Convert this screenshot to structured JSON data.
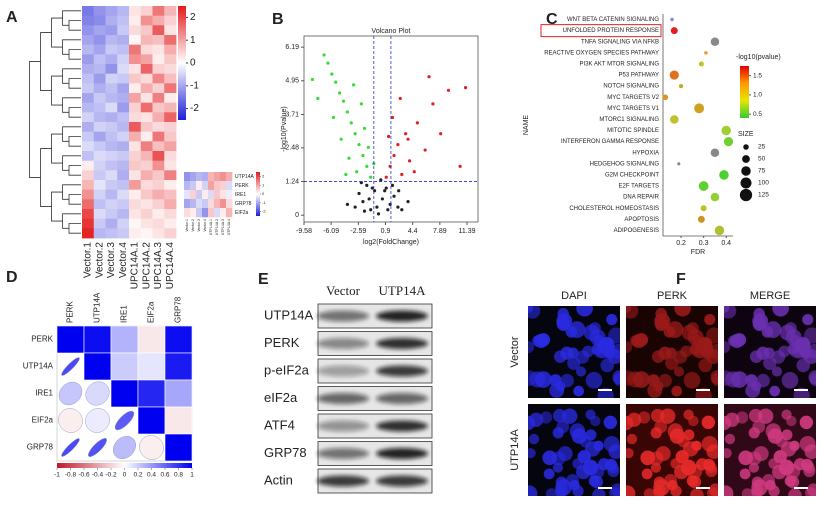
{
  "panel_labels": [
    "A",
    "B",
    "C",
    "D",
    "E",
    "F"
  ],
  "chart_data": [
    {
      "type": "heatmap",
      "columns": [
        "Vector.1",
        "Vector.2",
        "Vector.3",
        "Vector.4",
        "UPC14A.1",
        "UPC14A.2",
        "UPC14A.3",
        "UPC14A.4"
      ],
      "values": [
        [
          -1.5,
          -1.2,
          -1.0,
          -0.8,
          0.3,
          0.5,
          1.5,
          0.8
        ],
        [
          -1.4,
          -1.3,
          -0.9,
          -0.7,
          0.2,
          1.2,
          0.9,
          0.5
        ],
        [
          -1.2,
          -1.0,
          -1.1,
          -0.6,
          0.4,
          0.6,
          1.8,
          0.3
        ],
        [
          -1.0,
          -1.2,
          -0.8,
          -0.9,
          0.1,
          0.8,
          0.7,
          1.6
        ],
        [
          -0.8,
          -1.0,
          -0.6,
          -0.7,
          1.5,
          0.4,
          0.3,
          0.9
        ],
        [
          -1.1,
          -0.7,
          -0.9,
          -0.5,
          1.2,
          1.0,
          0.2,
          0.6
        ],
        [
          -0.9,
          -0.8,
          -1.2,
          -0.4,
          0.3,
          1.7,
          0.5,
          0.4
        ],
        [
          -0.7,
          -1.1,
          -0.5,
          -0.6,
          0.6,
          0.4,
          1.3,
          0.7
        ],
        [
          -0.6,
          -0.9,
          -0.7,
          -1.0,
          0.2,
          0.9,
          0.5,
          1.5
        ],
        [
          -1.0,
          -0.6,
          -0.8,
          -0.9,
          1.0,
          0.3,
          1.4,
          0.2
        ],
        [
          -0.8,
          -0.7,
          -0.4,
          -1.1,
          0.5,
          1.6,
          0.6,
          0.8
        ],
        [
          -0.5,
          -0.8,
          -0.9,
          -0.7,
          0.4,
          0.3,
          0.9,
          1.7
        ],
        [
          -0.9,
          -0.5,
          -0.6,
          -0.8,
          1.8,
          0.6,
          0.4,
          0.5
        ],
        [
          -0.6,
          -1.0,
          -0.7,
          -0.5,
          0.9,
          0.2,
          1.5,
          0.6
        ],
        [
          -0.4,
          -0.6,
          -0.8,
          -0.9,
          0.3,
          1.4,
          0.7,
          1.0
        ],
        [
          -0.7,
          -0.4,
          -0.5,
          -0.6,
          0.5,
          0.8,
          1.9,
          0.4
        ],
        [
          0.2,
          -0.5,
          -0.7,
          -0.8,
          0.6,
          0.5,
          1.2,
          0.3
        ],
        [
          0.5,
          -0.6,
          -0.4,
          -0.9,
          0.3,
          0.9,
          0.6,
          1.4
        ],
        [
          0.8,
          -0.3,
          -0.6,
          -0.7,
          1.1,
          0.4,
          0.5,
          0.2
        ],
        [
          1.2,
          -0.5,
          -0.8,
          -0.4,
          0.2,
          0.6,
          0.9,
          0.7
        ],
        [
          1.6,
          -0.7,
          -0.5,
          -0.6,
          0.4,
          0.3,
          0.5,
          0.9
        ],
        [
          2.0,
          -0.4,
          -0.6,
          -0.8,
          0.3,
          0.5,
          0.2,
          0.4
        ],
        [
          2.2,
          -0.6,
          -0.9,
          -0.5,
          0.1,
          0.3,
          0.4,
          0.2
        ],
        [
          2.4,
          -0.8,
          -0.7,
          -0.6,
          0.2,
          0.1,
          0.3,
          0.5
        ]
      ],
      "clim": [
        -2.5,
        2.5
      ],
      "ticks": [
        2,
        1,
        0,
        -1,
        -2
      ],
      "colors": [
        "#1f1fd6",
        "#ffffff",
        "#e31a1c"
      ],
      "inset": {
        "rows": [
          "UTP14A",
          "PERK",
          "IRE1",
          "GRP78",
          "EIF2a"
        ],
        "columns": [
          "Vector.1",
          "Vector.2",
          "Vector.3",
          "Vector.4",
          "UTP14A.1",
          "UTP14A.2",
          "UTP14A.3",
          "UTP14A.4"
        ],
        "values": [
          [
            -1.2,
            -1.0,
            -0.8,
            -0.9,
            0.8,
            1.0,
            1.2,
            0.9
          ],
          [
            -0.8,
            -0.6,
            0.2,
            -0.5,
            1.0,
            0.6,
            0.5,
            -0.4
          ],
          [
            -0.3,
            0.5,
            -0.6,
            0.2,
            -0.4,
            0.6,
            0.3,
            -0.2
          ],
          [
            -1.0,
            -0.8,
            -0.4,
            -0.6,
            0.4,
            0.8,
            1.2,
            0.4
          ],
          [
            0.4,
            0.2,
            -0.6,
            -1.2,
            0.6,
            -0.4,
            0.2,
            0.8
          ]
        ],
        "ticks": [
          2,
          1,
          0,
          -1,
          -2
        ]
      }
    },
    {
      "type": "scatter",
      "title": "Volcano Plot",
      "x_label": "log2(FoldChange)",
      "y_label": "-log10(Pvalue)",
      "xlim": [
        -9.58,
        12.8
      ],
      "ylim": [
        -0.25,
        6.6
      ],
      "xticks": [
        -9.58,
        -6.09,
        -2.59,
        0.9,
        4.4,
        7.89,
        11.39
      ],
      "yticks": [
        0,
        1.24,
        2.48,
        3.71,
        4.95,
        6.19
      ],
      "thresholds": {
        "x": [
          -0.6,
          1.6
        ],
        "y": 1.24
      },
      "series": [
        {
          "color": "#222222",
          "x": [
            -3,
            -2.5,
            -2,
            -1.5,
            -1,
            -0.5,
            0,
            0.5,
            1,
            1.5,
            2,
            2.5,
            3,
            -2.2,
            -1.2,
            -0.2,
            0.8,
            1.8,
            -4,
            3.8,
            -1.8,
            0.3,
            -0.8,
            1.2,
            2.6
          ],
          "values": [
            0.3,
            0.8,
            0.5,
            1.1,
            0.2,
            0.9,
            0.05,
            0.6,
            1.0,
            0.4,
            0.7,
            0.3,
            0.2,
            1.2,
            0.6,
            0.3,
            0.9,
            1.1,
            0.4,
            0.5,
            0.15,
            1.3,
            1.0,
            0.2,
            0.9
          ]
        },
        {
          "color": "#33dd33",
          "x": [
            -1,
            -1.5,
            -2,
            -2.5,
            -3,
            -3.5,
            -4,
            -4.5,
            -5,
            -5.5,
            -6,
            -6.5,
            -7,
            -2.8,
            -3.8,
            -4.8,
            -1.8,
            -5.8,
            -7.8,
            -2.2,
            -3.2,
            -1.3,
            -8.5,
            -0.6,
            -4.2
          ],
          "values": [
            1.4,
            1.8,
            2.2,
            2.6,
            3.0,
            3.4,
            3.8,
            4.2,
            4.5,
            4.9,
            5.2,
            5.6,
            5.9,
            1.6,
            2.1,
            2.8,
            3.2,
            3.6,
            4.3,
            4.1,
            4.8,
            2.5,
            5.0,
            1.9,
            1.5
          ]
        },
        {
          "color": "#e02020",
          "x": [
            1,
            1.5,
            2,
            2.5,
            3,
            3.5,
            4,
            5,
            6,
            7,
            8,
            9,
            10.5,
            1.8,
            2.8,
            3.8,
            4.6,
            6.5,
            11.2,
            1.3
          ],
          "values": [
            1.4,
            1.8,
            2.2,
            2.6,
            1.5,
            3.0,
            2.0,
            3.4,
            2.4,
            4.1,
            3.0,
            4.6,
            1.8,
            3.6,
            4.3,
            2.8,
            1.6,
            5.1,
            4.7,
            2.9
          ]
        }
      ]
    },
    {
      "type": "bubble",
      "x_label": "FDR",
      "y_label": "NAME",
      "categories": [
        "WNT BETA CATENIN SIGNALING",
        "UNFOLDED PROTEIN RESPONSE",
        "TNFA SIGNALING VIA NFKB",
        "REACTIVE OXYGEN SPECIES PATHWAY",
        "PI3K AKT MTOR SIGNALING",
        "P53 PATHWAY",
        "NOTCH SIGNALING",
        "MYC TARGETS V2",
        "MYC TARGETS V1",
        "MTORC1 SIGNALING",
        "MITOTIC SPINDLE",
        "INTERFERON GAMMA RESPONSE",
        "HYPOXIA",
        "HEDGEHOG SIGNALING",
        "G2M CHECKPOINT",
        "E2F TARGETS",
        "DNA REPAIR",
        "CHOLESTEROL HOMEOSTASIS",
        "APOPTOSIS",
        "ADIPOGENESIS"
      ],
      "x": [
        0.16,
        0.17,
        0.35,
        0.31,
        0.29,
        0.17,
        0.2,
        0.13,
        0.28,
        0.17,
        0.4,
        0.41,
        0.35,
        0.19,
        0.39,
        0.3,
        0.35,
        0.3,
        0.29,
        0.37
      ],
      "sizes": [
        10,
        40,
        60,
        10,
        20,
        70,
        15,
        25,
        80,
        60,
        75,
        70,
        60,
        8,
        75,
        80,
        60,
        30,
        40,
        75
      ],
      "colors": [
        "#8888cc",
        "#e02020",
        "#888888",
        "#e0a020",
        "#c0c020",
        "#e07020",
        "#c0b020",
        "#e09020",
        "#d0a020",
        "#c0c030",
        "#a0d030",
        "#70d030",
        "#888888",
        "#888888",
        "#50d030",
        "#60d030",
        "#90d030",
        "#c0c020",
        "#d09020",
        "#b0c030"
      ],
      "xlim": [
        0.12,
        0.43
      ],
      "xticks": [
        0.2,
        0.3,
        0.4
      ],
      "highlight": 1,
      "color_legend": {
        "title": "-log10(pvalue)",
        "lim": [
          0.4,
          1.75
        ],
        "ticks": [
          1.5,
          {
            "value": 1,
            "label": "1.0"
          },
          0.5
        ],
        "gradient": [
          "#33cc33",
          "#e6e600",
          "#ff9900",
          "#e60000"
        ]
      },
      "size_legend": {
        "title": "SIZE",
        "values": [
          25,
          50,
          75,
          100,
          125
        ]
      }
    },
    {
      "type": "correlogram",
      "variables": [
        "PERK",
        "UTP14A",
        "IRE1",
        "EIF2a",
        "GRP78"
      ],
      "matrix": [
        [
          1,
          0.95,
          0.3,
          -0.1,
          0.95
        ],
        [
          0.95,
          1,
          0.2,
          0.1,
          0.9
        ],
        [
          0.3,
          0.2,
          1,
          0.85,
          0.35
        ],
        [
          -0.1,
          0.1,
          0.85,
          1,
          -0.1
        ],
        [
          0.95,
          0.9,
          0.35,
          -0.1,
          1
        ]
      ],
      "clim": [
        -1,
        1
      ],
      "ticks": [
        -1,
        -0.8,
        -0.6,
        -0.4,
        -0.2,
        0,
        0.2,
        0.4,
        0.6,
        0.8,
        1
      ],
      "colors": [
        "#c0182b",
        "#ffffff",
        "#0000f0"
      ]
    }
  ],
  "blot": {
    "columns": [
      "Vector",
      "UTP14A"
    ],
    "rows": [
      "UTP14A",
      "PERK",
      "p-eIF2a",
      "eIF2a",
      "ATF4",
      "GRP78",
      "Actin"
    ]
  },
  "microscopy": {
    "columns": [
      "DAPI",
      "PERK",
      "MERGE"
    ],
    "rows": [
      "Vector",
      "UTP14A"
    ]
  }
}
